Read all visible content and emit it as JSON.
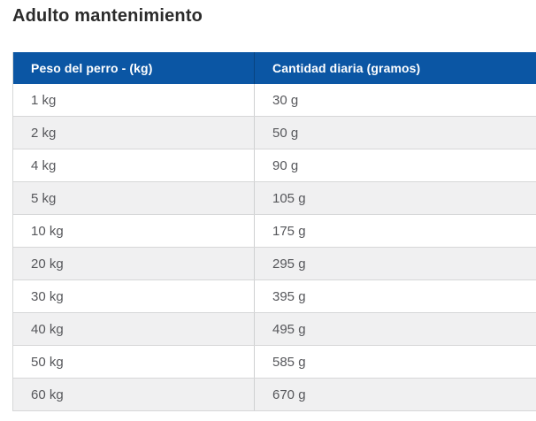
{
  "page": {
    "title": "Adulto mantenimiento"
  },
  "colors": {
    "header_background": "#0b56a4",
    "header_text": "#ffffff",
    "row_alt_background": "#f0f0f1",
    "row_background": "#ffffff",
    "cell_text": "#56575b",
    "border": "#d6d7d8",
    "title_text": "#2b2b2b"
  },
  "table": {
    "columns": [
      {
        "label": "Peso del perro - (kg)"
      },
      {
        "label": "Cantidad diaria (gramos)"
      }
    ],
    "rows": [
      {
        "weight": "1 kg",
        "amount": "30 g"
      },
      {
        "weight": "2 kg",
        "amount": "50 g"
      },
      {
        "weight": "4 kg",
        "amount": "90 g"
      },
      {
        "weight": "5 kg",
        "amount": "105 g"
      },
      {
        "weight": "10 kg",
        "amount": "175 g"
      },
      {
        "weight": "20 kg",
        "amount": "295 g"
      },
      {
        "weight": "30 kg",
        "amount": "395 g"
      },
      {
        "weight": "40 kg",
        "amount": "495 g"
      },
      {
        "weight": "50 kg",
        "amount": "585 g"
      },
      {
        "weight": "60 kg",
        "amount": "670 g"
      }
    ]
  },
  "chart_data": {
    "type": "table",
    "title": "Adulto mantenimiento",
    "categories": [
      1,
      2,
      4,
      5,
      10,
      20,
      30,
      40,
      50,
      60
    ],
    "values": [
      30,
      50,
      90,
      105,
      175,
      295,
      395,
      495,
      585,
      670
    ],
    "xlabel": "Peso del perro - (kg)",
    "ylabel": "Cantidad diaria (gramos)"
  }
}
